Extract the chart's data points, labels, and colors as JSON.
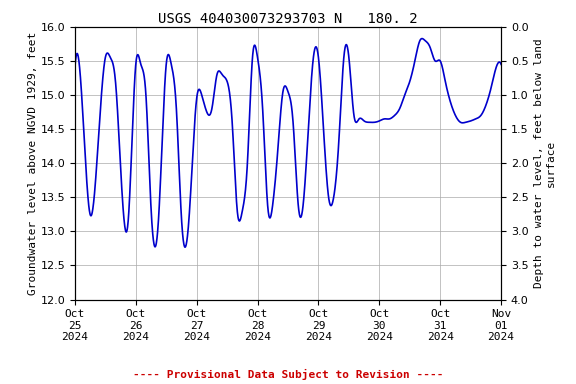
{
  "title": "USGS 404030073293703 N   180. 2",
  "ylabel_left": "Groundwater level above NGVD 1929, feet",
  "ylabel_right": "Depth to water level, feet below land\nsurface",
  "ylim_left": [
    12.0,
    16.0
  ],
  "ylim_right": [
    4.0,
    0.0
  ],
  "line_color": "#0000cc",
  "line_width": 1.2,
  "background_color": "#ffffff",
  "grid_color": "#aaaaaa",
  "provisional_text": "---- Provisional Data Subject to Revision ----",
  "provisional_color": "#cc0000",
  "title_fontsize": 10,
  "axis_fontsize": 8,
  "tick_fontsize": 8,
  "key_times": [
    0,
    3,
    6,
    9,
    12,
    14,
    16,
    18,
    21,
    24,
    26,
    28,
    30,
    33,
    36,
    38,
    40,
    42,
    45,
    48,
    50,
    52,
    54,
    56,
    58,
    60,
    62,
    64,
    66,
    68,
    70,
    72,
    74,
    76,
    78,
    80,
    82,
    84,
    86,
    88,
    90,
    92,
    94,
    96,
    98,
    100,
    102,
    104,
    106,
    108,
    110,
    112,
    114,
    116,
    118,
    120,
    122,
    124,
    126,
    128,
    130,
    132,
    134,
    136,
    138,
    140,
    142,
    144,
    146,
    148,
    150,
    152,
    154,
    156,
    158,
    160,
    162,
    164,
    166,
    168
  ],
  "key_values": [
    15.4,
    14.8,
    13.25,
    14.2,
    15.55,
    15.55,
    15.2,
    13.95,
    13.15,
    15.45,
    15.45,
    15.0,
    13.35,
    13.2,
    15.45,
    15.45,
    14.8,
    13.2,
    13.2,
    14.95,
    15.0,
    14.75,
    14.8,
    15.3,
    15.3,
    15.2,
    14.6,
    13.3,
    13.3,
    14.0,
    15.55,
    15.55,
    14.8,
    13.37,
    13.4,
    14.2,
    15.05,
    15.05,
    14.6,
    13.4,
    13.4,
    14.5,
    15.55,
    15.55,
    14.5,
    13.5,
    13.5,
    14.3,
    15.55,
    15.55,
    14.7,
    14.65,
    14.62,
    14.6,
    14.6,
    14.62,
    14.65,
    14.65,
    14.7,
    14.8,
    15.0,
    15.2,
    15.5,
    15.8,
    15.8,
    15.7,
    15.5,
    15.5,
    15.2,
    14.9,
    14.7,
    14.6,
    14.6,
    14.62,
    14.65,
    14.7,
    14.85,
    15.1,
    15.4,
    15.45
  ],
  "xlim_hours": 168,
  "xtick_positions": [
    0,
    24,
    48,
    72,
    96,
    120,
    144,
    168
  ],
  "xtick_labels": [
    "Oct\n25\n2024",
    "Oct\n26\n2024",
    "Oct\n27\n2024",
    "Oct\n28\n2024",
    "Oct\n29\n2024",
    "Oct\n30\n2024",
    "Oct\n31\n2024",
    "Nov\n01\n2024"
  ]
}
